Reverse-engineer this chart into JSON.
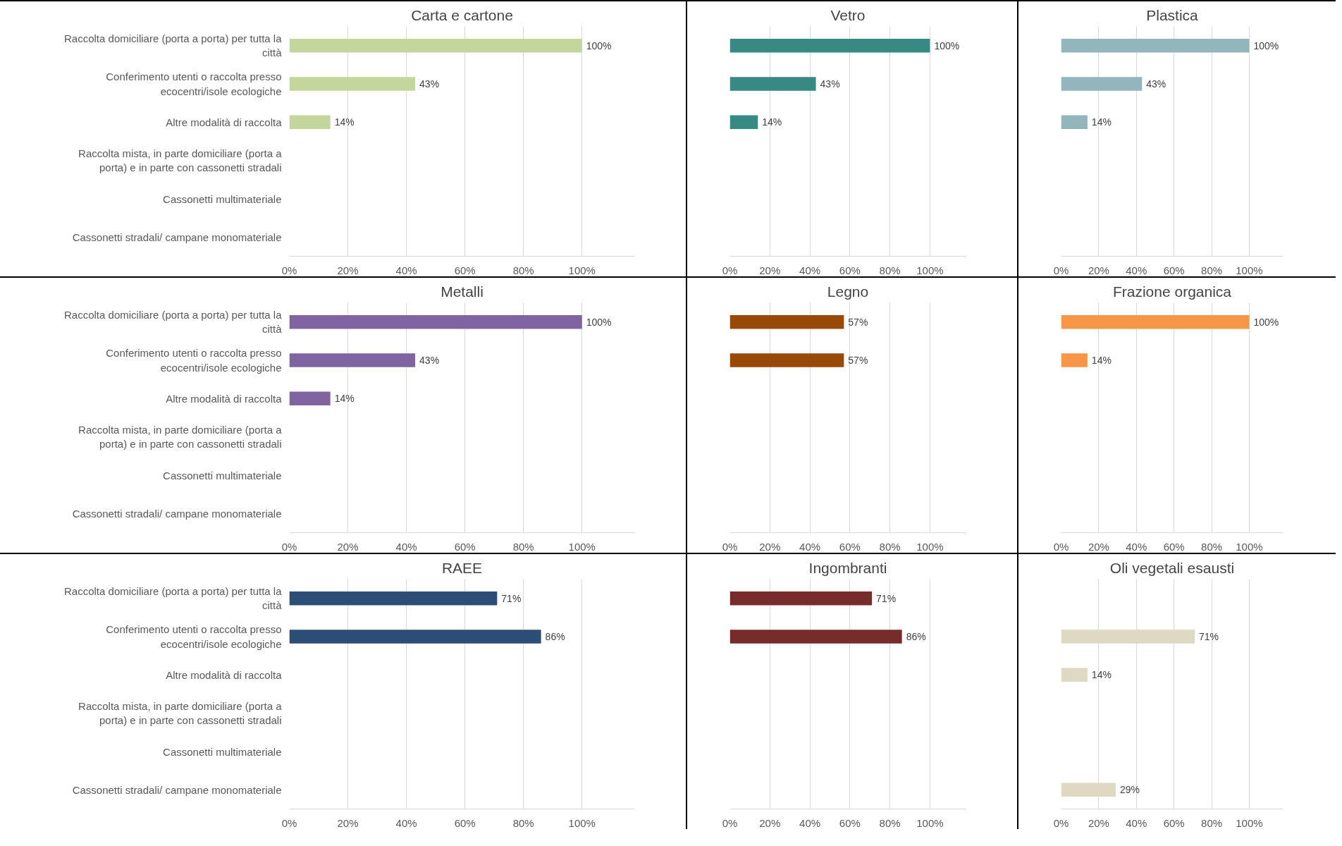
{
  "chart_data": [
    {
      "type": "bar",
      "orientation": "horizontal",
      "title": "Carta e cartone",
      "categories": [
        "Raccolta domiciliare (porta a porta) per tutta la città",
        "Conferimento utenti o raccolta presso ecocentri/isole ecologiche",
        "Altre modalità di raccolta",
        "Raccolta mista, in parte domiciliare (porta a porta) e in parte con cassonetti stradali",
        "Cassonetti multimateriale",
        "Cassonetti stradali/ campane monomateriale"
      ],
      "values": [
        100,
        43,
        14,
        null,
        null,
        null
      ],
      "value_labels": [
        "100%",
        "43%",
        "14%",
        null,
        null,
        null
      ],
      "color": "#c3d69b",
      "xlim": [
        0,
        118
      ],
      "xticks": [
        {
          "value": 0,
          "label": "0%"
        },
        {
          "value": 20,
          "label": "20%"
        },
        {
          "value": 40,
          "label": "40%"
        },
        {
          "value": 60,
          "label": "60%"
        },
        {
          "value": 80,
          "label": "80%"
        },
        {
          "value": 100,
          "label": "100%"
        }
      ],
      "grid": "x"
    },
    {
      "type": "bar",
      "orientation": "horizontal",
      "title": "Vetro",
      "categories": [
        "Raccolta domiciliare (porta a porta) per tutta la città",
        "Conferimento utenti o raccolta presso ecocentri/isole ecologiche",
        "Altre modalità di raccolta",
        "Raccolta mista, in parte domiciliare (porta a porta) e in parte con cassonetti stradali",
        "Cassonetti multimateriale",
        "Cassonetti stradali/ campane monomateriale"
      ],
      "values": [
        100,
        43,
        14,
        null,
        null,
        null
      ],
      "value_labels": [
        "100%",
        "43%",
        "14%",
        null,
        null,
        null
      ],
      "color": "#378983",
      "xlim": [
        0,
        118
      ],
      "xticks": [
        {
          "value": 0,
          "label": "0%"
        },
        {
          "value": 20,
          "label": "20%"
        },
        {
          "value": 40,
          "label": "40%"
        },
        {
          "value": 60,
          "label": "60%"
        },
        {
          "value": 80,
          "label": "80%"
        },
        {
          "value": 100,
          "label": "100%"
        }
      ],
      "grid": "x",
      "tick_labels": "x"
    },
    {
      "type": "bar",
      "orientation": "horizontal",
      "title": "Plastica",
      "categories": [
        "Raccolta domiciliare (porta a porta) per tutta la città",
        "Conferimento utenti o raccolta presso ecocentri/isole ecologiche",
        "Altre modalità di raccolta",
        "Raccolta mista, in parte domiciliare (porta a porta) e in parte con cassonetti stradali",
        "Cassonetti multimateriale",
        "Cassonetti stradali/ campane monomateriale"
      ],
      "values": [
        100,
        43,
        14,
        null,
        null,
        null
      ],
      "value_labels": [
        "100%",
        "43%",
        "14%",
        null,
        null,
        null
      ],
      "color": "#93b6bc",
      "xlim": [
        0,
        118
      ],
      "xticks": [
        {
          "value": 0,
          "label": "0%"
        },
        {
          "value": 20,
          "label": "20%"
        },
        {
          "value": 40,
          "label": "40%"
        },
        {
          "value": 60,
          "label": "60%"
        },
        {
          "value": 80,
          "label": "80%"
        },
        {
          "value": 100,
          "label": "100%"
        }
      ],
      "grid": "x",
      "tick_labels": "x"
    },
    {
      "type": "bar",
      "orientation": "horizontal",
      "title": "Metalli",
      "categories": [
        "Raccolta domiciliare (porta a porta) per tutta la città",
        "Conferimento utenti o raccolta presso ecocentri/isole ecologiche",
        "Altre modalità di raccolta",
        "Raccolta mista, in parte domiciliare (porta a porta) e in parte con cassonetti stradali",
        "Cassonetti multimateriale",
        "Cassonetti stradali/ campane monomateriale"
      ],
      "values": [
        100,
        43,
        14,
        null,
        null,
        null
      ],
      "value_labels": [
        "100%",
        "43%",
        "14%",
        null,
        null,
        null
      ],
      "color": "#8064a2",
      "xlim": [
        0,
        118
      ],
      "xticks": [
        {
          "value": 0,
          "label": "0%"
        },
        {
          "value": 20,
          "label": "20%"
        },
        {
          "value": 40,
          "label": "40%"
        },
        {
          "value": 60,
          "label": "60%"
        },
        {
          "value": 80,
          "label": "80%"
        },
        {
          "value": 100,
          "label": "100%"
        }
      ],
      "grid": "x"
    },
    {
      "type": "bar",
      "orientation": "horizontal",
      "title": "Legno",
      "categories": [
        "Raccolta domiciliare (porta a porta) per tutta la città",
        "Conferimento utenti o raccolta presso ecocentri/isole ecologiche",
        "Altre modalità di raccolta",
        "Raccolta mista, in parte domiciliare (porta a porta) e in parte con cassonetti stradali",
        "Cassonetti multimateriale",
        "Cassonetti stradali/ campane monomateriale"
      ],
      "values": [
        57,
        57,
        null,
        null,
        null,
        null
      ],
      "value_labels": [
        "57%",
        "57%",
        null,
        null,
        null,
        null
      ],
      "color": "#984807",
      "xlim": [
        0,
        118
      ],
      "xticks": [
        {
          "value": 0,
          "label": "0%"
        },
        {
          "value": 20,
          "label": "20%"
        },
        {
          "value": 40,
          "label": "40%"
        },
        {
          "value": 60,
          "label": "60%"
        },
        {
          "value": 80,
          "label": "80%"
        },
        {
          "value": 100,
          "label": "100%"
        }
      ],
      "grid": "x",
      "tick_labels": "x"
    },
    {
      "type": "bar",
      "orientation": "horizontal",
      "title": "Frazione organica",
      "categories": [
        "Raccolta domiciliare (porta a porta) per tutta la città",
        "Conferimento utenti o raccolta presso ecocentri/isole ecologiche",
        "Altre modalità di raccolta",
        "Raccolta mista, in parte domiciliare (porta a porta) e in parte con cassonetti stradali",
        "Cassonetti multimateriale",
        "Cassonetti stradali/ campane monomateriale"
      ],
      "values": [
        100,
        14,
        null,
        null,
        null,
        null
      ],
      "value_labels": [
        "100%",
        "14%",
        null,
        null,
        null,
        null
      ],
      "color": "#f79646",
      "xlim": [
        0,
        118
      ],
      "xticks": [
        {
          "value": 0,
          "label": "0%"
        },
        {
          "value": 20,
          "label": "20%"
        },
        {
          "value": 40,
          "label": "40%"
        },
        {
          "value": 60,
          "label": "60%"
        },
        {
          "value": 80,
          "label": "80%"
        },
        {
          "value": 100,
          "label": "100%"
        }
      ],
      "grid": "x",
      "tick_labels": "x"
    },
    {
      "type": "bar",
      "orientation": "horizontal",
      "title": "RAEE",
      "categories": [
        "Raccolta domiciliare (porta a porta) per tutta la città",
        "Conferimento utenti o raccolta presso ecocentri/isole ecologiche",
        "Altre modalità di raccolta",
        "Raccolta mista, in parte domiciliare (porta a porta) e in parte con cassonetti stradali",
        "Cassonetti multimateriale",
        "Cassonetti stradali/ campane monomateriale"
      ],
      "values": [
        71,
        86,
        null,
        null,
        null,
        null
      ],
      "value_labels": [
        "71%",
        "86%",
        null,
        null,
        null,
        null
      ],
      "color": "#2c4d75",
      "xlim": [
        0,
        118
      ],
      "xticks": [
        {
          "value": 0,
          "label": "0%"
        },
        {
          "value": 20,
          "label": "20%"
        },
        {
          "value": 40,
          "label": "40%"
        },
        {
          "value": 60,
          "label": "60%"
        },
        {
          "value": 80,
          "label": "80%"
        },
        {
          "value": 100,
          "label": "100%"
        }
      ],
      "grid": "x"
    },
    {
      "type": "bar",
      "orientation": "horizontal",
      "title": "Ingombranti",
      "categories": [
        "Raccolta domiciliare (porta a porta) per tutta la città",
        "Conferimento utenti o raccolta presso ecocentri/isole ecologiche",
        "Altre modalità di raccolta",
        "Raccolta mista, in parte domiciliare (porta a porta) e in parte con cassonetti stradali",
        "Cassonetti multimateriale",
        "Cassonetti stradali/ campane monomateriale"
      ],
      "values": [
        71,
        86,
        null,
        null,
        null,
        null
      ],
      "value_labels": [
        "71%",
        "86%",
        null,
        null,
        null,
        null
      ],
      "color": "#772c2a",
      "xlim": [
        0,
        118
      ],
      "xticks": [
        {
          "value": 0,
          "label": "0%"
        },
        {
          "value": 20,
          "label": "20%"
        },
        {
          "value": 40,
          "label": "40%"
        },
        {
          "value": 60,
          "label": "60%"
        },
        {
          "value": 80,
          "label": "80%"
        },
        {
          "value": 100,
          "label": "100%"
        }
      ],
      "grid": "x",
      "tick_labels": "x"
    },
    {
      "type": "bar",
      "orientation": "horizontal",
      "title": "Oli vegetali esausti",
      "categories": [
        "Raccolta domiciliare (porta a porta) per tutta la città",
        "Conferimento utenti o raccolta presso ecocentri/isole ecologiche",
        "Altre modalità di raccolta",
        "Raccolta mista, in parte domiciliare (porta a porta) e in parte con cassonetti stradali",
        "Cassonetti multimateriale",
        "Cassonetti stradali/ campane monomateriale"
      ],
      "values": [
        null,
        71,
        14,
        null,
        null,
        29
      ],
      "value_labels": [
        null,
        "71%",
        "14%",
        null,
        null,
        "29%"
      ],
      "color": "#ddd9c3",
      "xlim": [
        0,
        118
      ],
      "xticks": [
        {
          "value": 0,
          "label": "0%"
        },
        {
          "value": 20,
          "label": "20%"
        },
        {
          "value": 40,
          "label": "40%"
        },
        {
          "value": 60,
          "label": "60%"
        },
        {
          "value": 80,
          "label": "80%"
        },
        {
          "value": 100,
          "label": "100%"
        }
      ],
      "grid": "x",
      "tick_labels": "x"
    }
  ]
}
